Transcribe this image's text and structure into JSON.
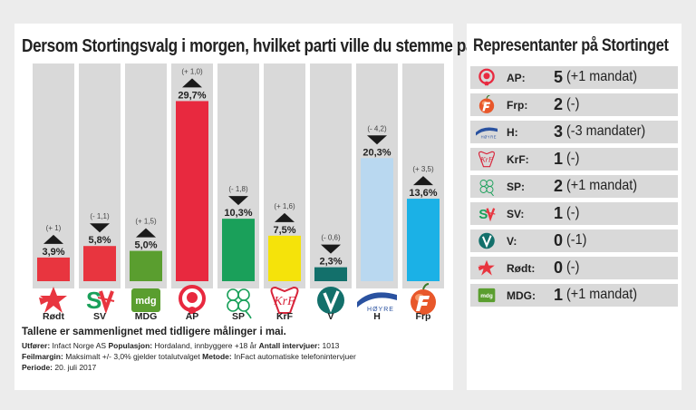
{
  "chart_data": {
    "type": "bar",
    "title": "Dersom Stortingsvalg i morgen, hvilket parti ville du stemme på da?",
    "categories": [
      "Rødt",
      "SV",
      "MDG",
      "AP",
      "SP",
      "KrF",
      "V",
      "H",
      "Frp"
    ],
    "values": [
      3.9,
      5.8,
      5.0,
      29.7,
      10.3,
      7.5,
      2.3,
      20.3,
      13.6
    ],
    "value_labels": [
      "3,9%",
      "5,8%",
      "5,0%",
      "29,7%",
      "10,3%",
      "7,5%",
      "2,3%",
      "20,3%",
      "13,6%"
    ],
    "changes": [
      "(+ 1)",
      "(- 1,1)",
      "(+ 1,5)",
      "(+ 1,0)",
      "(- 1,8)",
      "(+ 1,6)",
      "(- 0,6)",
      "(- 4,2)",
      "(+ 3,5)"
    ],
    "directions": [
      "up",
      "down",
      "up",
      "up",
      "down",
      "up",
      "down",
      "down",
      "up"
    ],
    "colors": [
      "#e8353f",
      "#e8353f",
      "#5a9e2f",
      "#e8293f",
      "#1aa05a",
      "#f5e30a",
      "#13706b",
      "#b9d8f0",
      "#1bb1e6"
    ],
    "ylim": [
      0,
      35
    ],
    "xlabel": "",
    "ylabel": ""
  },
  "left_panel": {
    "note_heading": "Tallene er sammenlignet med tidligere målinger i mai.",
    "lines": [
      {
        "label1": "Utfører:",
        "text1": "Infact Norge AS",
        "label2": "Populasjon:",
        "text2": "Hordaland, innbyggere +18 år",
        "label3": "Antall intervjuer:",
        "text3": "1013"
      },
      {
        "label1": "Feilmargin:",
        "text1": "Maksimalt +/- 3,0% gjelder totalutvalget",
        "label2": "Metode:",
        "text2": "InFact automatiske telefonintervjuer",
        "label3": "",
        "text3": ""
      },
      {
        "label1": "Periode:",
        "text1": "20. juli 2017",
        "label2": "",
        "text2": "",
        "label3": "",
        "text3": ""
      }
    ]
  },
  "logos": {
    "hoyre_text": "HØYRE",
    "mdg_text": "mdg",
    "krf_text": "KrF",
    "sv_text": "SV"
  },
  "representatives": {
    "title": "Representanter på Stortinget",
    "rows": [
      {
        "party": "AP:",
        "count": "5",
        "change": "(+1 mandat)",
        "logo": "ap-rose-icon"
      },
      {
        "party": "Frp:",
        "count": "2",
        "change": "(-)",
        "logo": "frp-apple-icon"
      },
      {
        "party": "H:",
        "count": "3",
        "change": "(-3 mandater)",
        "logo": "hoyre-icon"
      },
      {
        "party": "KrF:",
        "count": "1",
        "change": "(-)",
        "logo": "krf-icon"
      },
      {
        "party": "SP:",
        "count": "2",
        "change": "(+1 mandat)",
        "logo": "sp-clover-icon"
      },
      {
        "party": "SV:",
        "count": "1",
        "change": "(-)",
        "logo": "sv-icon"
      },
      {
        "party": "V:",
        "count": "0",
        "change": "(-1)",
        "logo": "v-icon"
      },
      {
        "party": "Rødt:",
        "count": "0",
        "change": "(-)",
        "logo": "rodt-star-icon"
      },
      {
        "party": "MDG:",
        "count": "1",
        "change": "(+1 mandat)",
        "logo": "mdg-icon"
      }
    ]
  }
}
